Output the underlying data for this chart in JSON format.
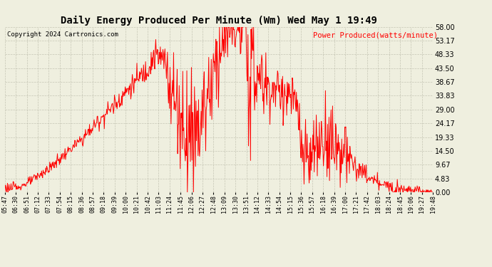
{
  "title": "Daily Energy Produced Per Minute (Wm) Wed May 1 19:49",
  "copyright": "Copyright 2024 Cartronics.com",
  "legend_label": "Power Produced(watts/minute)",
  "line_color": "red",
  "background_color": "#efefdf",
  "grid_color": "#bbbbaa",
  "ymin": 0.0,
  "ymax": 58.0,
  "yticks": [
    0.0,
    4.83,
    9.67,
    14.5,
    19.33,
    24.17,
    29.0,
    33.83,
    38.67,
    43.5,
    48.33,
    53.17,
    58.0
  ],
  "xtick_labels": [
    "05:47",
    "06:30",
    "06:51",
    "07:12",
    "07:33",
    "07:54",
    "08:15",
    "08:36",
    "08:57",
    "09:18",
    "09:39",
    "10:00",
    "10:21",
    "10:42",
    "11:03",
    "11:24",
    "11:45",
    "12:06",
    "12:27",
    "12:48",
    "13:09",
    "13:30",
    "13:51",
    "14:12",
    "14:33",
    "14:54",
    "15:15",
    "15:36",
    "15:57",
    "16:18",
    "16:39",
    "17:00",
    "17:21",
    "17:42",
    "18:03",
    "18:24",
    "18:45",
    "19:06",
    "19:27",
    "19:48"
  ]
}
